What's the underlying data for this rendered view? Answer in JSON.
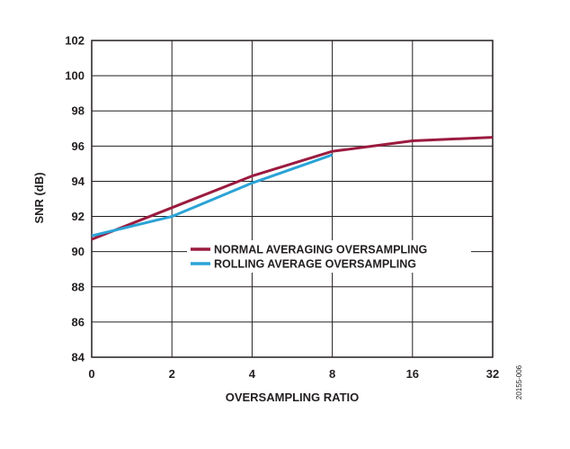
{
  "chart_data": {
    "type": "line",
    "title": "",
    "xlabel": "OVERSAMPLING RATIO",
    "ylabel": "SNR (dB)",
    "x_tick_labels": [
      "0",
      "2",
      "4",
      "8",
      "16",
      "32"
    ],
    "x_scale": "categorical",
    "y_ticks": [
      "84",
      "86",
      "88",
      "90",
      "92",
      "94",
      "96",
      "98",
      "100",
      "102"
    ],
    "ylim": [
      84,
      102
    ],
    "grid": true,
    "legend_position": "center-right",
    "series": [
      {
        "name": "NORMAL AVERAGING OVERSAMPLING",
        "color": "#9b1b3f",
        "x": [
          "0",
          "2",
          "4",
          "8",
          "16",
          "32"
        ],
        "values": [
          90.7,
          92.5,
          94.3,
          95.7,
          96.3,
          96.5
        ]
      },
      {
        "name": "ROLLING AVERAGE OVERSAMPLING",
        "color": "#2aa3d6",
        "x": [
          "0",
          "2",
          "4",
          "8"
        ],
        "values": [
          90.9,
          92.0,
          93.9,
          95.5
        ]
      }
    ]
  },
  "figure_id": "20155-006"
}
